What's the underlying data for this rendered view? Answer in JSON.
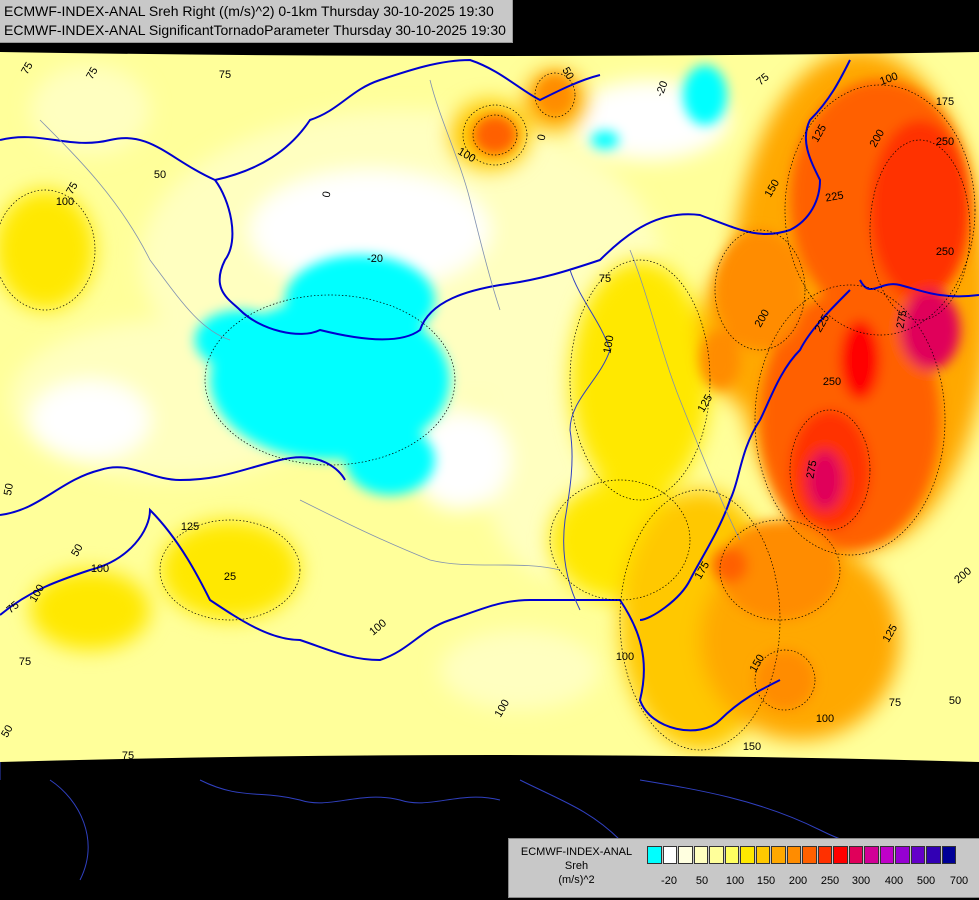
{
  "header": {
    "line1": "ECMWF-INDEX-ANAL Sreh Right ((m/s)^2) 0-1km Thursday 30-10-2025 19:30",
    "line2": "ECMWF-INDEX-ANAL SignificantTornadoParameter Thursday 30-10-2025 19:30"
  },
  "legend": {
    "line1": "ECMWF-INDEX-ANAL",
    "line2": "Sreh",
    "line3": "(m/s)^2",
    "colors": [
      "#00ffff",
      "#ffffff",
      "#ffffe0",
      "#ffffc0",
      "#ffff9a",
      "#ffff60",
      "#ffe800",
      "#ffc800",
      "#ffa800",
      "#ff8c00",
      "#ff6000",
      "#ff3000",
      "#ff0000",
      "#e0005a",
      "#d20096",
      "#c000c8",
      "#9600d2",
      "#6400c8",
      "#3200b4",
      "#000096"
    ],
    "ticks": [
      "-20",
      "50",
      "100",
      "150",
      "200",
      "250",
      "300",
      "400",
      "500",
      "700"
    ]
  },
  "contour_labels": [
    {
      "text": "75"
    },
    {
      "text": "75"
    },
    {
      "text": "75"
    },
    {
      "text": "75"
    },
    {
      "text": "50"
    },
    {
      "text": "100"
    },
    {
      "text": "0"
    },
    {
      "text": "-20"
    },
    {
      "text": "50"
    },
    {
      "text": "75"
    },
    {
      "text": "100"
    },
    {
      "text": "175"
    },
    {
      "text": "200"
    },
    {
      "text": "250"
    },
    {
      "text": "225"
    },
    {
      "text": "250"
    },
    {
      "text": "150"
    },
    {
      "text": "125"
    },
    {
      "text": "100"
    },
    {
      "text": "0"
    },
    {
      "text": "-20"
    },
    {
      "text": "75"
    },
    {
      "text": "200"
    },
    {
      "text": "225"
    },
    {
      "text": "275"
    },
    {
      "text": "100"
    },
    {
      "text": "125"
    },
    {
      "text": "250"
    },
    {
      "text": "275"
    },
    {
      "text": "100"
    },
    {
      "text": "125"
    },
    {
      "text": "50"
    },
    {
      "text": "50"
    },
    {
      "text": "100"
    },
    {
      "text": "25"
    },
    {
      "text": "75"
    },
    {
      "text": "75"
    },
    {
      "text": "100"
    },
    {
      "text": "100"
    },
    {
      "text": "175"
    },
    {
      "text": "200"
    },
    {
      "text": "125"
    },
    {
      "text": "150"
    },
    {
      "text": "100"
    },
    {
      "text": "75"
    },
    {
      "text": "50"
    },
    {
      "text": "150"
    },
    {
      "text": "100"
    },
    {
      "text": "50"
    },
    {
      "text": "75"
    }
  ]
}
